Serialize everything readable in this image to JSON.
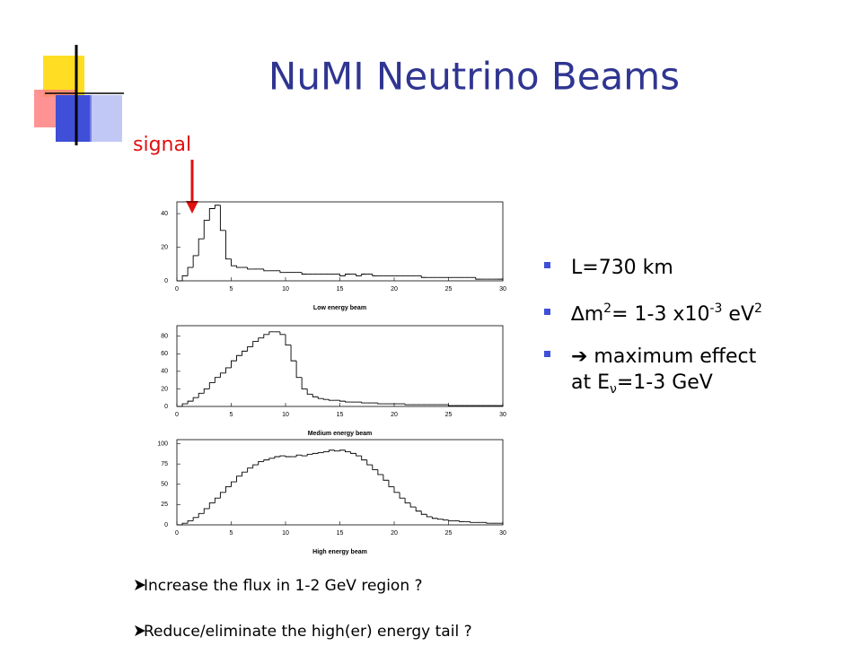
{
  "slide": {
    "title": "NuMI Neutrino Beams",
    "signal": "signal",
    "bullets": [
      [
        "L=730 km"
      ],
      [
        "∆m",
        "2",
        "= 1-3 x10",
        "-3",
        " eV",
        "2"
      ],
      [
        "➔ maximum effect"
      ],
      [
        "at E",
        "ν",
        "=1-3 GeV"
      ]
    ],
    "notes": [
      "Increase the flux in 1-2 GeV region ?",
      "Reduce/eliminate the high(er) energy tail ?"
    ]
  },
  "chart_data": [
    {
      "type": "histogram",
      "xlabel": "Low energy beam",
      "color": "#000000",
      "bins": [
        0,
        0.5,
        1,
        1.5,
        2,
        2.5,
        3,
        3.5,
        4,
        4.5,
        5,
        5.5,
        6,
        6.5,
        7,
        7.5,
        8,
        8.5,
        9,
        9.5,
        10,
        10.5,
        11,
        11.5,
        12,
        12.5,
        13,
        13.5,
        14,
        14.5,
        15,
        15.5,
        16,
        16.5,
        17,
        17.5,
        18,
        18.5,
        19,
        19.5,
        20,
        20.5,
        21,
        21.5,
        22,
        22.5,
        23,
        23.5,
        24,
        24.5,
        25,
        25.5,
        26,
        26.5,
        27,
        27.5,
        28,
        28.5,
        29,
        29.5,
        30
      ],
      "values": [
        0,
        3,
        8,
        15,
        25,
        36,
        43,
        45,
        30,
        13,
        9,
        8,
        8,
        7,
        7,
        7,
        6,
        6,
        6,
        5,
        5,
        5,
        5,
        4,
        4,
        4,
        4,
        4,
        4,
        4,
        3,
        4,
        4,
        3,
        4,
        4,
        3,
        3,
        3,
        3,
        3,
        3,
        3,
        3,
        3,
        2,
        2,
        2,
        2,
        2,
        2,
        2,
        2,
        2,
        2,
        1,
        1,
        1,
        1,
        1
      ],
      "xlim": [
        0,
        30
      ],
      "xticks": [
        0,
        5,
        10,
        15,
        20,
        25,
        30
      ],
      "ylim": [
        0,
        47
      ],
      "yticks": [
        0,
        20,
        40
      ]
    },
    {
      "type": "histogram",
      "xlabel": "Medium energy beam",
      "color": "#000000",
      "bins": [
        0,
        0.5,
        1,
        1.5,
        2,
        2.5,
        3,
        3.5,
        4,
        4.5,
        5,
        5.5,
        6,
        6.5,
        7,
        7.5,
        8,
        8.5,
        9,
        9.5,
        10,
        10.5,
        11,
        11.5,
        12,
        12.5,
        13,
        13.5,
        14,
        14.5,
        15,
        15.5,
        16,
        16.5,
        17,
        17.5,
        18,
        18.5,
        19,
        19.5,
        20,
        20.5,
        21,
        21.5,
        22,
        22.5,
        23,
        23.5,
        24,
        24.5,
        25,
        25.5,
        26,
        26.5,
        27,
        27.5,
        28,
        28.5,
        29,
        29.5,
        30
      ],
      "values": [
        0,
        3,
        6,
        10,
        15,
        20,
        27,
        33,
        38,
        44,
        52,
        58,
        63,
        68,
        74,
        78,
        82,
        85,
        85,
        82,
        70,
        52,
        33,
        20,
        14,
        11,
        9,
        8,
        7,
        7,
        6,
        5,
        5,
        5,
        4,
        4,
        4,
        3,
        3,
        3,
        3,
        3,
        2,
        2,
        2,
        2,
        2,
        2,
        2,
        2,
        1,
        1,
        1,
        1,
        1,
        1,
        1,
        1,
        1,
        1
      ],
      "xlim": [
        0,
        30
      ],
      "xticks": [
        0,
        5,
        10,
        15,
        20,
        25,
        30
      ],
      "ylim": [
        0,
        92
      ],
      "yticks": [
        0,
        20,
        40,
        60,
        80
      ]
    },
    {
      "type": "histogram",
      "xlabel": "High energy beam",
      "color": "#000000",
      "bins": [
        0,
        0.5,
        1,
        1.5,
        2,
        2.5,
        3,
        3.5,
        4,
        4.5,
        5,
        5.5,
        6,
        6.5,
        7,
        7.5,
        8,
        8.5,
        9,
        9.5,
        10,
        10.5,
        11,
        11.5,
        12,
        12.5,
        13,
        13.5,
        14,
        14.5,
        15,
        15.5,
        16,
        16.5,
        17,
        17.5,
        18,
        18.5,
        19,
        19.5,
        20,
        20.5,
        21,
        21.5,
        22,
        22.5,
        23,
        23.5,
        24,
        24.5,
        25,
        25.5,
        26,
        26.5,
        27,
        27.5,
        28,
        28.5,
        29,
        29.5,
        30
      ],
      "values": [
        0,
        2,
        5,
        9,
        14,
        20,
        27,
        33,
        40,
        47,
        53,
        60,
        65,
        70,
        74,
        78,
        80,
        82,
        84,
        85,
        84,
        84,
        86,
        85,
        87,
        88,
        89,
        90,
        92,
        91,
        92,
        90,
        88,
        85,
        80,
        74,
        68,
        62,
        55,
        47,
        40,
        33,
        27,
        22,
        17,
        13,
        10,
        8,
        7,
        6,
        5,
        5,
        4,
        4,
        3,
        3,
        3,
        2,
        2,
        2
      ],
      "xlim": [
        0,
        30
      ],
      "xticks": [
        0,
        5,
        10,
        15,
        20,
        25,
        30
      ],
      "ylim": [
        0,
        105
      ],
      "yticks": [
        0,
        25,
        50,
        75,
        100
      ]
    }
  ]
}
